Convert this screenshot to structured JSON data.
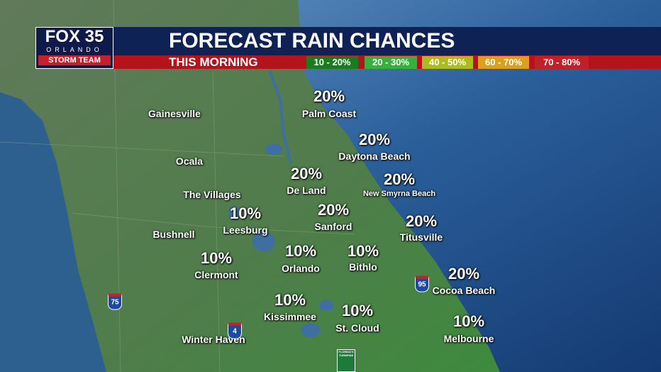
{
  "header": {
    "logo": {
      "station": "FOX 35",
      "city": "ORLANDO",
      "team": "STORM TEAM"
    },
    "title": "FORECAST RAIN CHANCES",
    "subtitle": "THIS MORNING"
  },
  "legend": [
    {
      "label": "10 - 20%",
      "color": "#1d7a1d"
    },
    {
      "label": "20 - 30%",
      "color": "#3aaf3a"
    },
    {
      "label": "40 - 50%",
      "color": "#aabd1c"
    },
    {
      "label": "60 - 70%",
      "color": "#dca01e"
    },
    {
      "label": "70 - 80%",
      "color": "#c22028"
    }
  ],
  "cities": [
    {
      "name": "Palm Coast",
      "chance": "20%"
    },
    {
      "name": "Daytona Beach",
      "chance": "20%"
    },
    {
      "name": "New Smyrna Beach",
      "chance": "20%"
    },
    {
      "name": "De Land",
      "chance": "20%"
    },
    {
      "name": "Sanford",
      "chance": "20%"
    },
    {
      "name": "Leesburg",
      "chance": "10%"
    },
    {
      "name": "Titusville",
      "chance": "20%"
    },
    {
      "name": "Orlando",
      "chance": "10%"
    },
    {
      "name": "Bithlo",
      "chance": "10%"
    },
    {
      "name": "Clermont",
      "chance": "10%"
    },
    {
      "name": "Cocoa Beach",
      "chance": "20%"
    },
    {
      "name": "Kissimmee",
      "chance": "10%"
    },
    {
      "name": "St. Cloud",
      "chance": "10%"
    },
    {
      "name": "Melbourne",
      "chance": "10%"
    }
  ],
  "places": [
    "Gainesville",
    "Ocala",
    "The Villages",
    "Bushnell",
    "Winter Haven"
  ],
  "highways": [
    "75",
    "4",
    "95"
  ],
  "turnpike": "FLORIDA'S TURNPIKE"
}
